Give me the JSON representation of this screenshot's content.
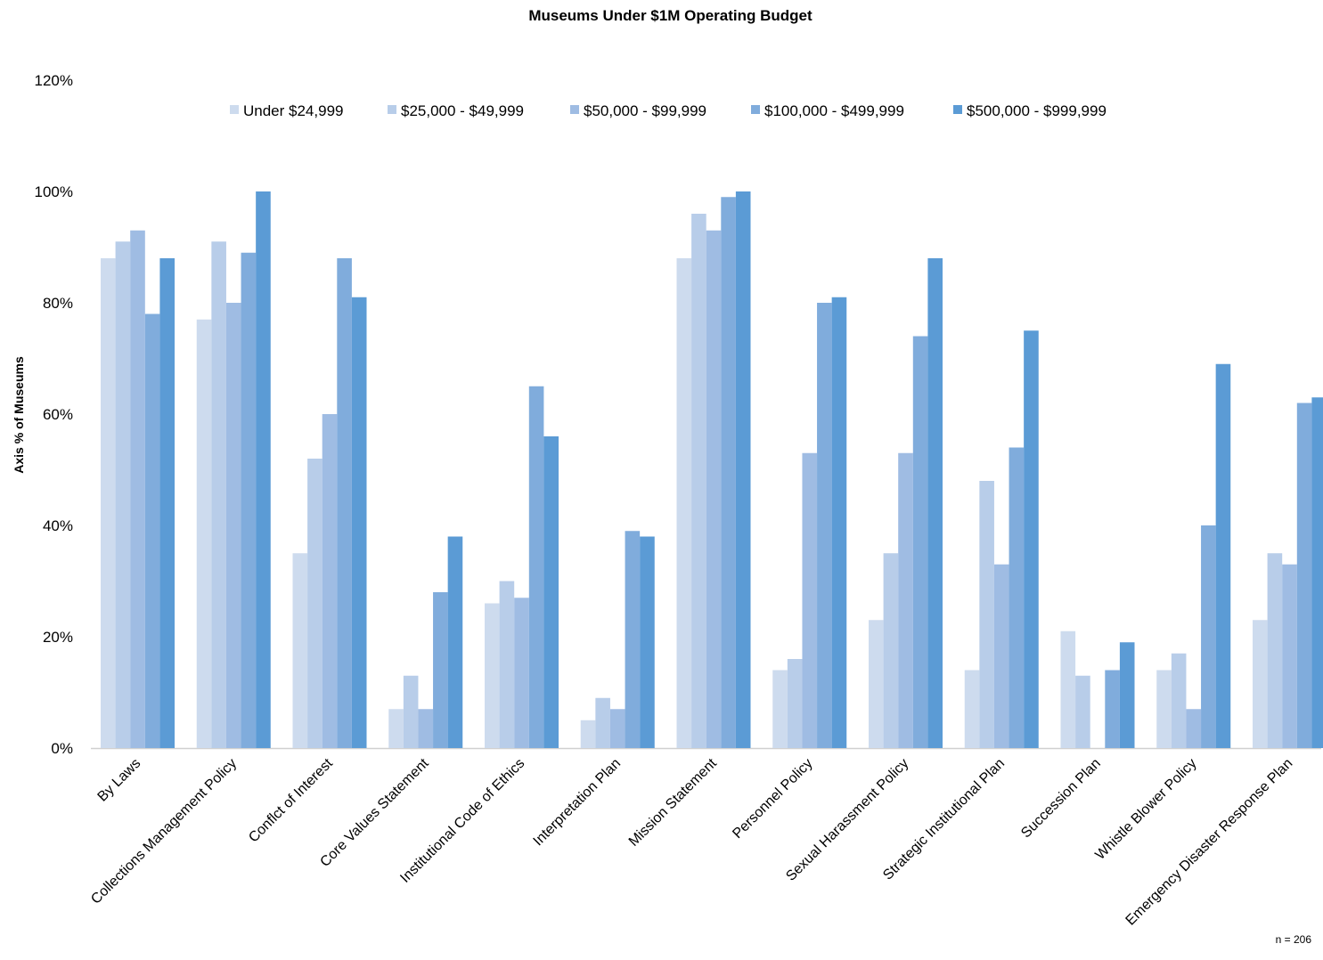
{
  "chart_data": {
    "type": "bar",
    "title": "Museums Under $1M Operating Budget",
    "xlabel": "",
    "ylabel": "Axis % of Museums",
    "ylim": [
      0,
      120
    ],
    "yticks": [
      "0%",
      "20%",
      "40%",
      "60%",
      "80%",
      "100%",
      "120%"
    ],
    "grid": false,
    "legend_position": "top",
    "categories": [
      "By Laws",
      "Collections Management Policy",
      "Conflct of Interest",
      "Core Values Statement",
      "Institutional Code of Ethics",
      "Interpretation Plan",
      "Mission Statement",
      "Personnel Policy",
      "Sexual Harassment Policy",
      "Strategic Institutional Plan",
      "Succession Plan",
      "Whistle Blower Policy",
      "Emergency Disaster Response Plan"
    ],
    "series": [
      {
        "name": "Under $24,999",
        "color": "#cddbee",
        "values": [
          88,
          77,
          35,
          7,
          26,
          5,
          88,
          14,
          23,
          14,
          21,
          14,
          23
        ]
      },
      {
        "name": "$25,000 - $49,999",
        "color": "#b8cde9",
        "values": [
          91,
          91,
          52,
          13,
          30,
          9,
          96,
          16,
          35,
          48,
          13,
          17,
          35
        ]
      },
      {
        "name": "$50,000 - $99,999",
        "color": "#9fbce3",
        "values": [
          93,
          80,
          60,
          7,
          27,
          7,
          93,
          53,
          53,
          33,
          0,
          7,
          33
        ]
      },
      {
        "name": "$100,000 - $499,999",
        "color": "#80acdc",
        "values": [
          78,
          89,
          88,
          28,
          65,
          39,
          99,
          80,
          74,
          54,
          14,
          40,
          62
        ]
      },
      {
        "name": "$500,000 - $999,999",
        "color": "#5b9bd5",
        "values": [
          88,
          100,
          81,
          38,
          56,
          38,
          100,
          81,
          88,
          75,
          19,
          69,
          63
        ]
      }
    ],
    "note": "n = 206"
  }
}
